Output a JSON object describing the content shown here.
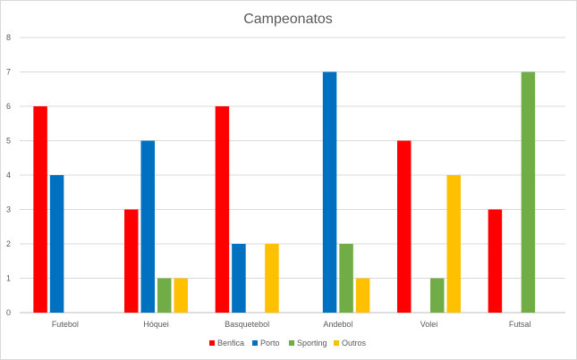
{
  "chart_data": {
    "type": "bar",
    "title": "Campeonatos",
    "xlabel": "",
    "ylabel": "",
    "ylim": [
      0,
      8
    ],
    "yticks": [
      "0",
      "1",
      "2",
      "3",
      "4",
      "5",
      "6",
      "7",
      "8"
    ],
    "grid": true,
    "legend_position": "bottom",
    "categories": [
      "Futebol",
      "Hóquei",
      "Basquetebol",
      "Andebol",
      "Volei",
      "Futsal"
    ],
    "series": [
      {
        "name": "Benfica",
        "color": "#ff0000",
        "values": [
          6,
          3,
          6,
          0,
          5,
          3
        ]
      },
      {
        "name": "Porto",
        "color": "#0070c0",
        "values": [
          4,
          5,
          2,
          7,
          0,
          0
        ]
      },
      {
        "name": "Sporting",
        "color": "#70ad47",
        "values": [
          0,
          1,
          0,
          2,
          1,
          7
        ]
      },
      {
        "name": "Outros",
        "color": "#ffc000",
        "values": [
          0,
          1,
          2,
          1,
          4,
          0
        ]
      }
    ]
  }
}
